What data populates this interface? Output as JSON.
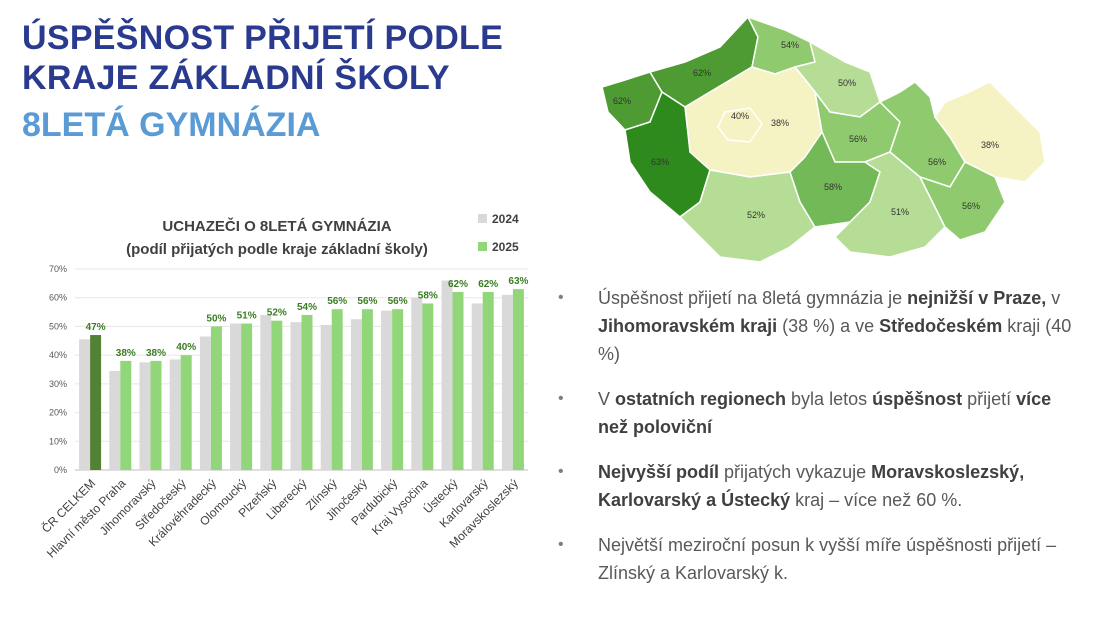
{
  "title": {
    "line1": "ÚSPĚŠNOST PŘIJETÍ PODLE",
    "line2": "KRAJE ZÁKLADNÍ ŠKOLY",
    "line3": "8LETÁ GYMNÁZIA"
  },
  "colors": {
    "title": "#2a3a8f",
    "subtitle": "#5b9bd5",
    "bar_2024": "#d9d9d9",
    "bar_2025": "#92d67a",
    "bar_total_2025": "#548235",
    "label_green": "#3a7d22"
  },
  "chart_data": {
    "type": "bar",
    "title": "UCHAZEČI O 8LETÁ GYMNÁZIA",
    "subtitle": "(podíl přijatých podle kraje základní školy)",
    "categories": [
      "ČR CELKEM",
      "Hlavní město Praha",
      "Jihomoravský",
      "Středočeský",
      "Královéhradecký",
      "Olomoucký",
      "Plzeňský",
      "Liberecký",
      "Zlínský",
      "Jihočeský",
      "Pardubický",
      "Kraj Vysočina",
      "Ústecký",
      "Karlovarský",
      "Moravskoslezský"
    ],
    "series": [
      {
        "name": "2024",
        "values": [
          45.5,
          34.5,
          37.5,
          38.5,
          46.5,
          51,
          54,
          51.5,
          50.5,
          52.5,
          55.5,
          60,
          66,
          58,
          61
        ]
      },
      {
        "name": "2025",
        "values": [
          47,
          38,
          38,
          40,
          50,
          51,
          52,
          54,
          56,
          56,
          56,
          58,
          62,
          62,
          63
        ]
      }
    ],
    "data_labels": [
      "47%",
      "38%",
      "38%",
      "40%",
      "50%",
      "51%",
      "52%",
      "54%",
      "56%",
      "56%",
      "56%",
      "58%",
      "62%",
      "62%",
      "63%"
    ],
    "y_ticks": [
      "0%",
      "10%",
      "20%",
      "30%",
      "40%",
      "50%",
      "60%",
      "70%"
    ],
    "ylim": [
      0,
      70
    ],
    "legend_position": "top-right",
    "grid": true
  },
  "map": {
    "regions": [
      {
        "name": "Karlovarský",
        "label": "62%",
        "value": 62
      },
      {
        "name": "Ústecký",
        "label": "62%",
        "value": 62
      },
      {
        "name": "Liberecký",
        "label": "54%",
        "value": 54
      },
      {
        "name": "Královéhradecký",
        "label": "50%",
        "value": 50
      },
      {
        "name": "Hlavní město Praha",
        "label": "38%",
        "value": 38
      },
      {
        "name": "Středočeský",
        "label": "40%",
        "value": 40
      },
      {
        "name": "Pardubický",
        "label": "56%",
        "value": 56
      },
      {
        "name": "Moravskoslezský",
        "label": "63%",
        "value": 63
      },
      {
        "name": "Plzeňský",
        "label": "52%",
        "value": 52
      },
      {
        "name": "Kraj Vysočina",
        "label": "58%",
        "value": 58
      },
      {
        "name": "Olomoucký",
        "label": "51%",
        "value": 51
      },
      {
        "name": "Jihočeský",
        "label": "56%",
        "value": 56
      },
      {
        "name": "Jihomoravský",
        "label": "38%",
        "value": 38
      },
      {
        "name": "Zlínský",
        "label": "56%",
        "value": 56
      }
    ]
  },
  "bullets": [
    [
      {
        "t": "Úspěšnost přijetí na 8letá gymnázia je ",
        "b": false
      },
      {
        "t": "nejnižší v Praze,",
        "b": true
      },
      {
        "t": " v ",
        "b": false
      },
      {
        "t": "Jihomoravském kraji",
        "b": true
      },
      {
        "t": " (38 %) a ve ",
        "b": false
      },
      {
        "t": "Středočeském",
        "b": true
      },
      {
        "t": " kraji (40 %)",
        "b": false
      }
    ],
    [
      {
        "t": "V ",
        "b": false
      },
      {
        "t": "ostatních regionech",
        "b": true
      },
      {
        "t": " byla letos ",
        "b": false
      },
      {
        "t": "úspěšnost",
        "b": true
      },
      {
        "t": " přijetí ",
        "b": false
      },
      {
        "t": "více než poloviční",
        "b": true
      }
    ],
    [
      {
        "t": "Nejvyšší podíl",
        "b": true
      },
      {
        "t": " přijatých vykazuje ",
        "b": false
      },
      {
        "t": "Moravskoslezský, Karlovarský a Ústecký",
        "b": true
      },
      {
        "t": " kraj – více než 60 %.",
        "b": false
      }
    ],
    [
      {
        "t": "Největší meziroční posun k vyšší míře úspěšnosti přijetí – Zlínský a Karlovarský k.",
        "b": false
      }
    ]
  ]
}
